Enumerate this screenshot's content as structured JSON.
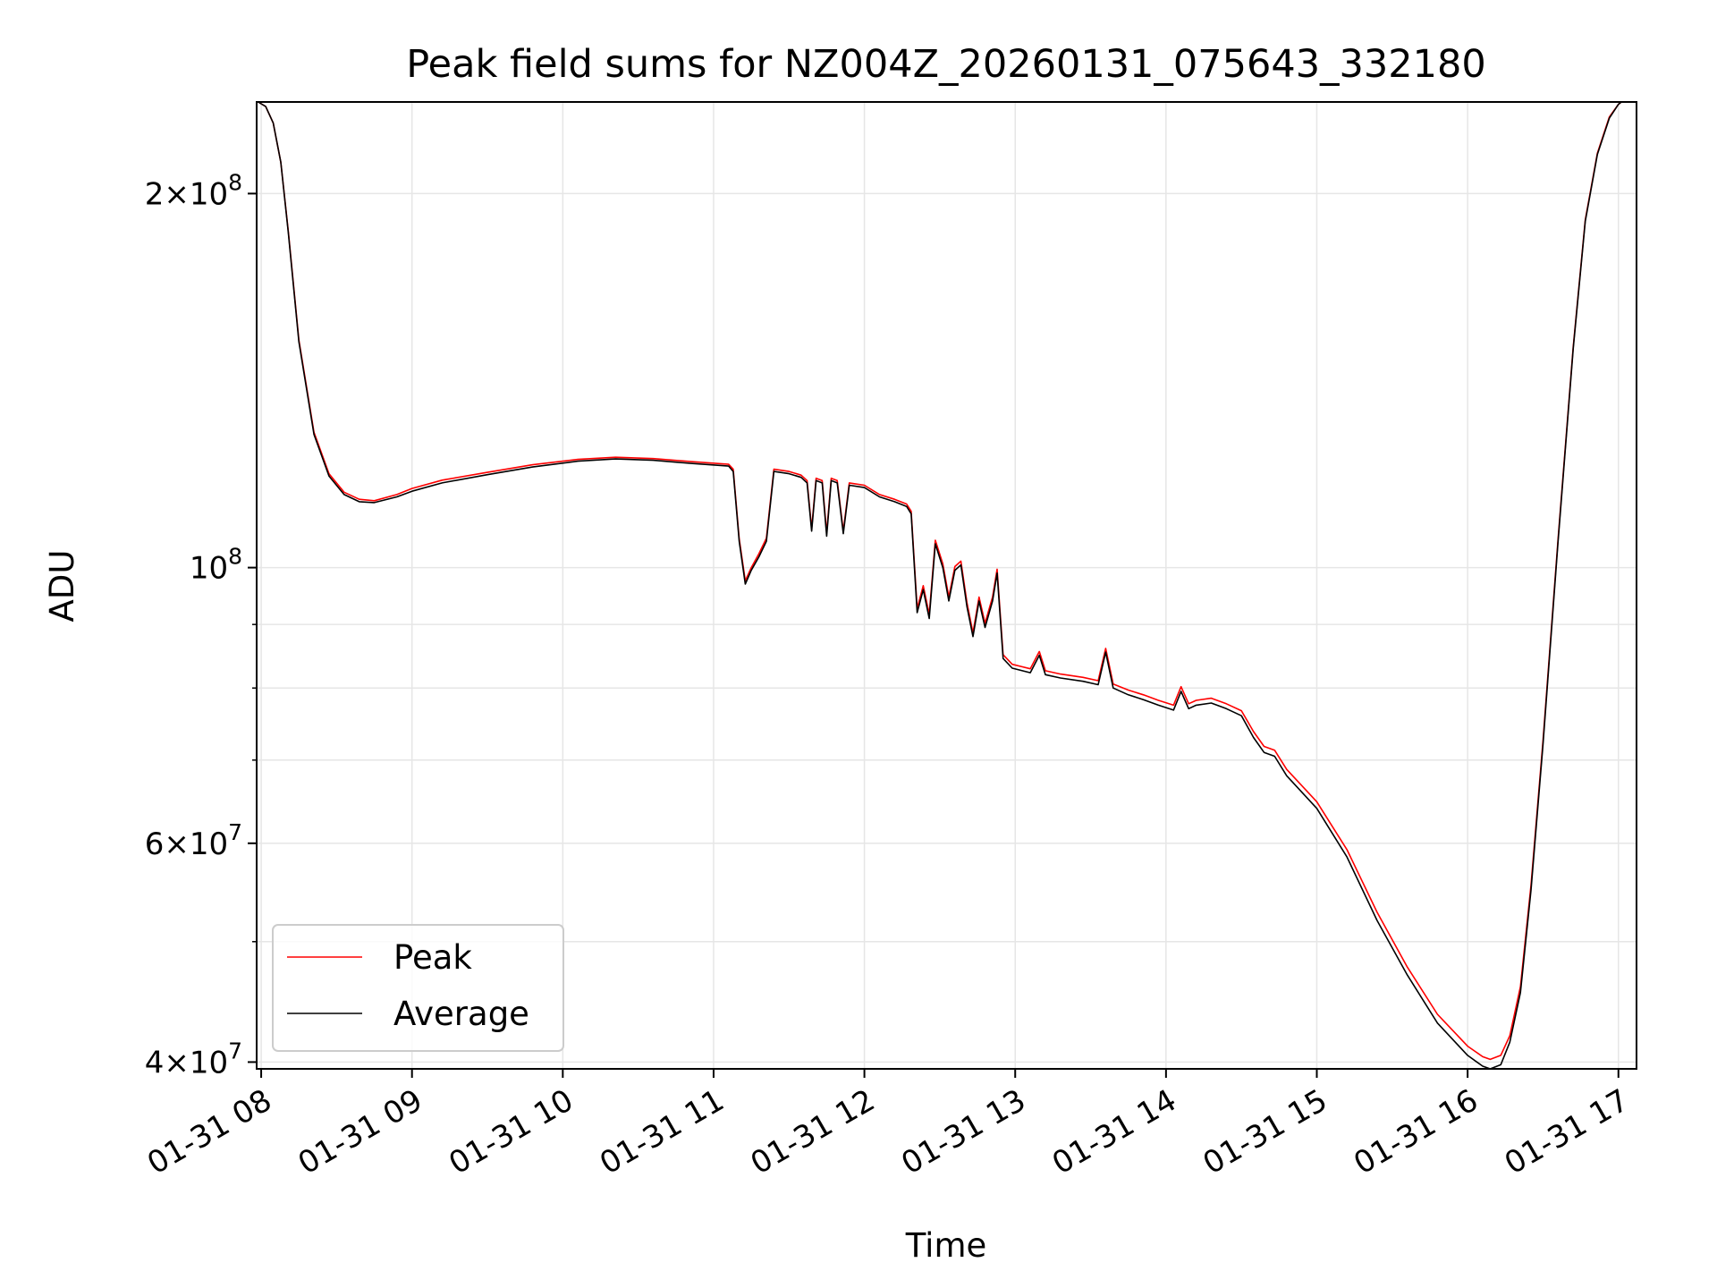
{
  "chart_data": {
    "type": "line",
    "title": "Peak field sums for NZ004Z_20260131_075643_332180",
    "xlabel": "Time",
    "ylabel": "ADU",
    "yscale": "log",
    "ylim": [
      39500000,
      237000000
    ],
    "xlim": [
      7.97,
      17.12
    ],
    "grid": true,
    "x_tick_values": [
      8,
      9,
      10,
      11,
      12,
      13,
      14,
      15,
      16,
      17
    ],
    "x_tick_labels": [
      "01-31 08",
      "01-31 09",
      "01-31 10",
      "01-31 11",
      "01-31 12",
      "01-31 13",
      "01-31 14",
      "01-31 15",
      "01-31 16",
      "01-31 17"
    ],
    "y_ticks": [
      {
        "value": 200000000,
        "mantissa": "2",
        "exponent": "8"
      },
      {
        "value": 100000000,
        "mantissa": "",
        "exponent": "8"
      },
      {
        "value": 60000000,
        "mantissa": "6",
        "exponent": "7"
      },
      {
        "value": 40000000,
        "mantissa": "4",
        "exponent": "7"
      }
    ],
    "y_minor_grid": [
      50000000,
      70000000,
      80000000,
      90000000
    ],
    "legend": {
      "position": "lower-left",
      "entries": [
        "Peak",
        "Average"
      ]
    },
    "series": [
      {
        "name": "Average",
        "color": "#000000",
        "points": [
          [
            7.98,
            237000000
          ],
          [
            8.03,
            235000000
          ],
          [
            8.08,
            228000000
          ],
          [
            8.13,
            212000000
          ],
          [
            8.18,
            186000000
          ],
          [
            8.25,
            152000000
          ],
          [
            8.35,
            128000000
          ],
          [
            8.45,
            118500000
          ],
          [
            8.55,
            114500000
          ],
          [
            8.65,
            113000000
          ],
          [
            8.75,
            112800000
          ],
          [
            8.9,
            114000000
          ],
          [
            9.0,
            115200000
          ],
          [
            9.2,
            117000000
          ],
          [
            9.5,
            118800000
          ],
          [
            9.8,
            120500000
          ],
          [
            10.1,
            121800000
          ],
          [
            10.35,
            122300000
          ],
          [
            10.6,
            122000000
          ],
          [
            10.85,
            121300000
          ],
          [
            11.1,
            120700000
          ],
          [
            11.13,
            119500000
          ],
          [
            11.17,
            105000000
          ],
          [
            11.21,
            97000000
          ],
          [
            11.25,
            99500000
          ],
          [
            11.3,
            102000000
          ],
          [
            11.35,
            105000000
          ],
          [
            11.4,
            119500000
          ],
          [
            11.5,
            119000000
          ],
          [
            11.58,
            118200000
          ],
          [
            11.62,
            117000000
          ],
          [
            11.65,
            107000000
          ],
          [
            11.68,
            117500000
          ],
          [
            11.72,
            117000000
          ],
          [
            11.75,
            106000000
          ],
          [
            11.78,
            117500000
          ],
          [
            11.82,
            117000000
          ],
          [
            11.86,
            106500000
          ],
          [
            11.9,
            116500000
          ],
          [
            12.0,
            116000000
          ],
          [
            12.1,
            114000000
          ],
          [
            12.2,
            113000000
          ],
          [
            12.28,
            112000000
          ],
          [
            12.31,
            110500000
          ],
          [
            12.35,
            92000000
          ],
          [
            12.39,
            96000000
          ],
          [
            12.43,
            91000000
          ],
          [
            12.47,
            104500000
          ],
          [
            12.52,
            100000000
          ],
          [
            12.56,
            94000000
          ],
          [
            12.6,
            99500000
          ],
          [
            12.64,
            100500000
          ],
          [
            12.68,
            93000000
          ],
          [
            12.72,
            88000000
          ],
          [
            12.76,
            94000000
          ],
          [
            12.8,
            89500000
          ],
          [
            12.85,
            94000000
          ],
          [
            12.88,
            99000000
          ],
          [
            12.92,
            84500000
          ],
          [
            12.98,
            83000000
          ],
          [
            13.1,
            82300000
          ],
          [
            13.16,
            85000000
          ],
          [
            13.2,
            82000000
          ],
          [
            13.3,
            81500000
          ],
          [
            13.45,
            81000000
          ],
          [
            13.55,
            80500000
          ],
          [
            13.6,
            85500000
          ],
          [
            13.65,
            80000000
          ],
          [
            13.75,
            79000000
          ],
          [
            13.85,
            78300000
          ],
          [
            13.95,
            77500000
          ],
          [
            14.05,
            76800000
          ],
          [
            14.1,
            79500000
          ],
          [
            14.15,
            77000000
          ],
          [
            14.2,
            77500000
          ],
          [
            14.3,
            77800000
          ],
          [
            14.4,
            77000000
          ],
          [
            14.5,
            76000000
          ],
          [
            14.58,
            73000000
          ],
          [
            14.65,
            71000000
          ],
          [
            14.72,
            70500000
          ],
          [
            14.8,
            68000000
          ],
          [
            15.0,
            64000000
          ],
          [
            15.2,
            58500000
          ],
          [
            15.4,
            52000000
          ],
          [
            15.6,
            47000000
          ],
          [
            15.8,
            43000000
          ],
          [
            16.0,
            40500000
          ],
          [
            16.1,
            39700000
          ],
          [
            16.15,
            39500000
          ],
          [
            16.22,
            39800000
          ],
          [
            16.28,
            41500000
          ],
          [
            16.35,
            45500000
          ],
          [
            16.42,
            55000000
          ],
          [
            16.5,
            72000000
          ],
          [
            16.6,
            105000000
          ],
          [
            16.7,
            150000000
          ],
          [
            16.78,
            190000000
          ],
          [
            16.86,
            215000000
          ],
          [
            16.94,
            230000000
          ],
          [
            17.0,
            236000000
          ],
          [
            17.02,
            237000000
          ]
        ]
      },
      {
        "name": "Peak",
        "color": "#ff0000",
        "points": [
          [
            7.98,
            237000000
          ],
          [
            8.03,
            235000000
          ],
          [
            8.08,
            228000000
          ],
          [
            8.13,
            212000000
          ],
          [
            8.18,
            186500000
          ],
          [
            8.25,
            152500000
          ],
          [
            8.35,
            128500000
          ],
          [
            8.45,
            119000000
          ],
          [
            8.55,
            115000000
          ],
          [
            8.65,
            113500000
          ],
          [
            8.75,
            113200000
          ],
          [
            8.9,
            114500000
          ],
          [
            9.0,
            115800000
          ],
          [
            9.2,
            117600000
          ],
          [
            9.5,
            119300000
          ],
          [
            9.8,
            121000000
          ],
          [
            10.1,
            122200000
          ],
          [
            10.35,
            122700000
          ],
          [
            10.6,
            122400000
          ],
          [
            10.85,
            121700000
          ],
          [
            11.1,
            121100000
          ],
          [
            11.13,
            120000000
          ],
          [
            11.17,
            105500000
          ],
          [
            11.21,
            97600000
          ],
          [
            11.25,
            100000000
          ],
          [
            11.3,
            102600000
          ],
          [
            11.35,
            105600000
          ],
          [
            11.4,
            120000000
          ],
          [
            11.5,
            119500000
          ],
          [
            11.58,
            118700000
          ],
          [
            11.62,
            117500000
          ],
          [
            11.65,
            107500000
          ],
          [
            11.68,
            118000000
          ],
          [
            11.72,
            117500000
          ],
          [
            11.75,
            106600000
          ],
          [
            11.78,
            118000000
          ],
          [
            11.82,
            117500000
          ],
          [
            11.86,
            107000000
          ],
          [
            11.9,
            117000000
          ],
          [
            12.0,
            116500000
          ],
          [
            12.1,
            114500000
          ],
          [
            12.2,
            113500000
          ],
          [
            12.28,
            112500000
          ],
          [
            12.31,
            111000000
          ],
          [
            12.35,
            92700000
          ],
          [
            12.39,
            96700000
          ],
          [
            12.43,
            91700000
          ],
          [
            12.47,
            105200000
          ],
          [
            12.52,
            100700000
          ],
          [
            12.56,
            94700000
          ],
          [
            12.6,
            100200000
          ],
          [
            12.64,
            101200000
          ],
          [
            12.68,
            93700000
          ],
          [
            12.72,
            88600000
          ],
          [
            12.76,
            94700000
          ],
          [
            12.8,
            90200000
          ],
          [
            12.85,
            94700000
          ],
          [
            12.88,
            99700000
          ],
          [
            12.92,
            85100000
          ],
          [
            12.98,
            83600000
          ],
          [
            13.1,
            82900000
          ],
          [
            13.16,
            85600000
          ],
          [
            13.2,
            82600000
          ],
          [
            13.3,
            82100000
          ],
          [
            13.45,
            81600000
          ],
          [
            13.55,
            81100000
          ],
          [
            13.6,
            86100000
          ],
          [
            13.65,
            80600000
          ],
          [
            13.75,
            79700000
          ],
          [
            13.85,
            79000000
          ],
          [
            13.95,
            78200000
          ],
          [
            14.05,
            77500000
          ],
          [
            14.1,
            80200000
          ],
          [
            14.15,
            77700000
          ],
          [
            14.2,
            78200000
          ],
          [
            14.3,
            78500000
          ],
          [
            14.4,
            77700000
          ],
          [
            14.5,
            76700000
          ],
          [
            14.58,
            73800000
          ],
          [
            14.65,
            71800000
          ],
          [
            14.72,
            71300000
          ],
          [
            14.8,
            68800000
          ],
          [
            15.0,
            64800000
          ],
          [
            15.2,
            59300000
          ],
          [
            15.4,
            52800000
          ],
          [
            15.6,
            47700000
          ],
          [
            15.8,
            43700000
          ],
          [
            16.0,
            41200000
          ],
          [
            16.1,
            40400000
          ],
          [
            16.15,
            40200000
          ],
          [
            16.22,
            40500000
          ],
          [
            16.28,
            42000000
          ],
          [
            16.35,
            46000000
          ],
          [
            16.42,
            55500000
          ],
          [
            16.5,
            72500000
          ],
          [
            16.6,
            105500000
          ],
          [
            16.7,
            150500000
          ],
          [
            16.78,
            190500000
          ],
          [
            16.86,
            215500000
          ],
          [
            16.94,
            230500000
          ],
          [
            17.0,
            236000000
          ],
          [
            17.02,
            237000000
          ]
        ]
      }
    ]
  }
}
